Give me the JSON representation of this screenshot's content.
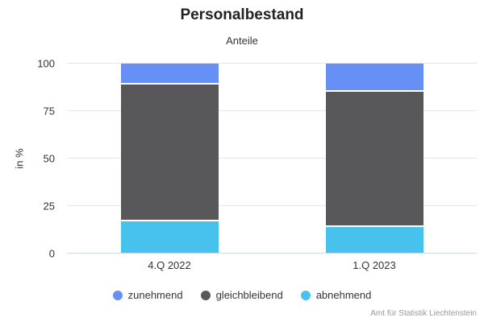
{
  "header": {
    "title": "Personalbestand",
    "subtitle": "Anteile"
  },
  "chart_data": {
    "type": "bar",
    "stacked": true,
    "stacking": "percent",
    "categories": [
      "4.Q 2022",
      "1.Q 2023"
    ],
    "series": [
      {
        "name": "zunehmend",
        "color": "#6690F6",
        "values": [
          11,
          15
        ]
      },
      {
        "name": "gleichbleibend",
        "color": "#58585A",
        "values": [
          72,
          71
        ]
      },
      {
        "name": "abnehmend",
        "color": "#47C2EC",
        "values": [
          17,
          14
        ]
      }
    ],
    "xlabel": "",
    "ylabel": "in %",
    "ylim": [
      0,
      100
    ],
    "yticks": [
      0,
      25,
      50,
      75,
      100
    ],
    "grid": true,
    "legend_position": "bottom",
    "colors": {
      "gridline": "#e6e6e6",
      "axis_line": "#ccd6eb",
      "text": "#333333",
      "credits_text": "#999999"
    }
  },
  "credits": "Amt für Statistik Liechtenstein"
}
